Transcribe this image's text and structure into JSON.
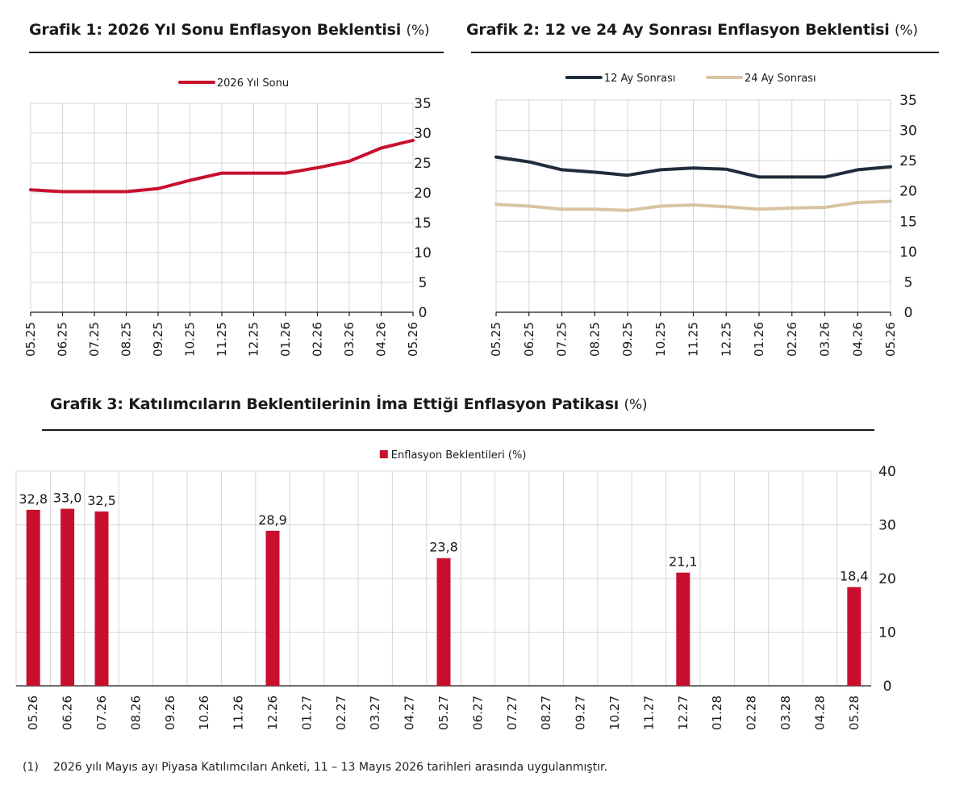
{
  "charts": [
    {
      "title": "Grafik 1: 2026 Yıl Sonu Enflasyon Beklentisi",
      "unit": "(%)"
    },
    {
      "title": "Grafik 2: 12 ve 24 Ay Sonrası Enflasyon Beklentisi",
      "unit": "(%)"
    },
    {
      "title": "Grafik 3: Katılımcıların Beklentilerinin İma Ettiği Enflasyon Patikası",
      "unit": "(%)"
    }
  ],
  "footnote": {
    "number": "(1)",
    "text": "2026 yılı Mayıs ayı Piyasa Katılımcıları Anketi, 11 – 13 Mayıs 2026 tarihleri arasında uygulanmıştır."
  },
  "colors": {
    "crimson": "#c8102e",
    "navy": "#1f2d3d",
    "beige": "#d8c4a2"
  },
  "chart_data": [
    {
      "type": "line",
      "title": "Grafik 1: 2026 Yıl Sonu Enflasyon Beklentisi (%)",
      "categories": [
        "05.25",
        "06.25",
        "07.25",
        "08.25",
        "09.25",
        "10.25",
        "11.25",
        "12.25",
        "01.26",
        "02.26",
        "03.26",
        "04.26",
        "05.26"
      ],
      "series": [
        {
          "name": "2026 Yıl Sonu",
          "color": "#c8102e",
          "values": [
            20.5,
            20.2,
            20.2,
            20.2,
            20.7,
            22.1,
            23.3,
            23.3,
            23.3,
            24.2,
            25.3,
            27.5,
            28.8
          ]
        }
      ],
      "yticks": [
        0,
        5,
        10,
        15,
        20,
        25,
        30,
        35
      ],
      "ylim": [
        0,
        35
      ],
      "y_axis_side": "right",
      "grid": true,
      "legend": "top-center"
    },
    {
      "type": "line",
      "title": "Grafik 2: 12 ve 24 Ay Sonrası Enflasyon Beklentisi (%)",
      "categories": [
        "05.25",
        "06.25",
        "07.25",
        "08.25",
        "09.25",
        "10.25",
        "11.25",
        "12.25",
        "01.26",
        "02.26",
        "03.26",
        "04.26",
        "05.26"
      ],
      "series": [
        {
          "name": "12 Ay Sonrası",
          "color": "#1f2d3d",
          "values": [
            25.6,
            24.8,
            23.5,
            23.1,
            22.6,
            23.5,
            23.8,
            23.6,
            22.3,
            22.3,
            22.3,
            23.5,
            24.0
          ]
        },
        {
          "name": "24 Ay Sonrası",
          "color": "#d8c4a2",
          "values": [
            17.8,
            17.5,
            17.0,
            17.0,
            16.8,
            17.5,
            17.7,
            17.4,
            17.0,
            17.2,
            17.3,
            18.1,
            18.3
          ]
        }
      ],
      "yticks": [
        0,
        5,
        10,
        15,
        20,
        25,
        30,
        35
      ],
      "ylim": [
        0,
        35
      ],
      "y_axis_side": "right",
      "grid": true,
      "legend": "top-center"
    },
    {
      "type": "bar",
      "title": "Grafik 3: Katılımcıların Beklentilerinin İma Ettiği Enflasyon Patikası (%)",
      "categories": [
        "05.26",
        "06.26",
        "07.26",
        "08.26",
        "09.26",
        "10.26",
        "11.26",
        "12.26",
        "01.27",
        "02.27",
        "03.27",
        "04.27",
        "05.27",
        "06.27",
        "07.27",
        "08.27",
        "09.27",
        "10.27",
        "11.27",
        "12.27",
        "01.28",
        "02.28",
        "03.28",
        "04.28",
        "05.28"
      ],
      "series": [
        {
          "name": "Enflasyon Beklentileri (%)",
          "color": "#c8102e",
          "values": [
            32.8,
            33.0,
            32.5,
            null,
            null,
            null,
            null,
            28.9,
            null,
            null,
            null,
            null,
            23.8,
            null,
            null,
            null,
            null,
            null,
            null,
            21.1,
            null,
            null,
            null,
            null,
            18.4
          ],
          "labels": [
            "32,8",
            "33,0",
            "32,5",
            "",
            "",
            "",
            "",
            "28,9",
            "",
            "",
            "",
            "",
            "23,8",
            "",
            "",
            "",
            "",
            "",
            "",
            "21,1",
            "",
            "",
            "",
            "",
            "18,4"
          ]
        }
      ],
      "yticks": [
        0,
        10,
        20,
        30,
        40
      ],
      "ylim": [
        0,
        40
      ],
      "y_axis_side": "right",
      "grid": true,
      "legend": "top-center"
    }
  ]
}
